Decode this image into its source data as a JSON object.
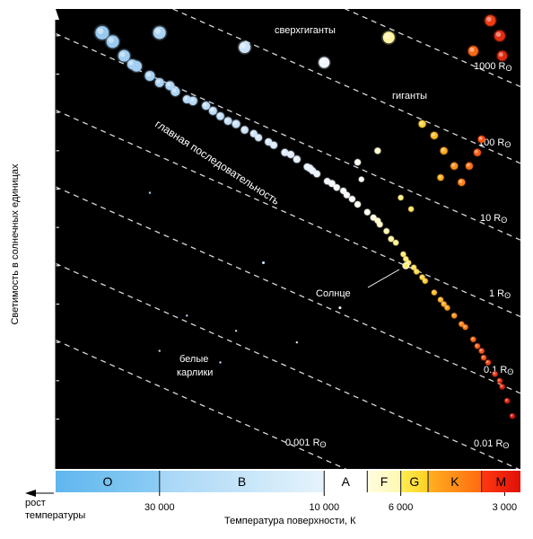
{
  "chart_data": {
    "type": "scatter",
    "title": "",
    "ylabel": "Светимость в солнечных единицах",
    "xlabel": "Температура поверхности, К",
    "xlabel_left": "рост температуры",
    "x_scale": "log",
    "x_direction": "decreasing",
    "y_scale": "log",
    "xlim": [
      60000,
      2700
    ],
    "ylim": [
      5e-06,
      5000000
    ],
    "grid": false,
    "background": "#000000",
    "y_ticks": [
      {
        "value": 1000000,
        "base": "10",
        "exp": "6"
      },
      {
        "value": 100000,
        "base": "10",
        "exp": "5"
      },
      {
        "value": 10000,
        "base": "10",
        "exp": "4"
      },
      {
        "value": 1000,
        "base": "10",
        "exp": "3"
      },
      {
        "value": 100,
        "base": "10",
        "exp": "2"
      },
      {
        "value": 10,
        "base": "10",
        "exp": ""
      },
      {
        "value": 1,
        "base": "1",
        "exp": ""
      },
      {
        "value": 0.1,
        "base": "0.1",
        "exp": ""
      },
      {
        "value": 0.01,
        "base": "10",
        "exp": "-2"
      },
      {
        "value": 0.001,
        "base": "10",
        "exp": "-3"
      },
      {
        "value": 0.0001,
        "base": "10",
        "exp": "-4"
      }
    ],
    "x_ticks": [
      {
        "value": 30000,
        "label": "30 000"
      },
      {
        "value": 10000,
        "label": "10 000"
      },
      {
        "value": 6000,
        "label": "6 000"
      },
      {
        "value": 3000,
        "label": "3 000"
      }
    ],
    "spectral_classes": [
      {
        "label": "O",
        "from": 60000,
        "to": 30000,
        "color_from": "#5fb6ee",
        "color_to": "#8cccf4",
        "text": "#000000"
      },
      {
        "label": "B",
        "from": 30000,
        "to": 10000,
        "color_from": "#a5d6f6",
        "color_to": "#e6f3fc",
        "text": "#000000"
      },
      {
        "label": "A",
        "from": 10000,
        "to": 7500,
        "color_from": "#ffffff",
        "color_to": "#ffffff",
        "text": "#000000"
      },
      {
        "label": "F",
        "from": 7500,
        "to": 6000,
        "color_from": "#fffce0",
        "color_to": "#fff8b0",
        "text": "#000000"
      },
      {
        "label": "G",
        "from": 6000,
        "to": 5000,
        "color_from": "#ffee55",
        "color_to": "#ffd020",
        "text": "#000000"
      },
      {
        "label": "K",
        "from": 5000,
        "to": 3500,
        "color_from": "#ffb020",
        "color_to": "#ff6a10",
        "text": "#000000"
      },
      {
        "label": "M",
        "from": 3500,
        "to": 2700,
        "color_from": "#ff3a10",
        "color_to": "#e01008",
        "text": "#000000"
      }
    ],
    "radius_lines": [
      {
        "label": "1000 R",
        "value": 1000
      },
      {
        "label": "100 R",
        "value": 100
      },
      {
        "label": "10 R",
        "value": 10
      },
      {
        "label": "1 R",
        "value": 1
      },
      {
        "label": "0.1 R",
        "value": 0.1
      },
      {
        "label": "0.01 R",
        "value": 0.01
      },
      {
        "label": "0.001 R",
        "value": 0.001
      }
    ],
    "radius_symbol": "ʘ",
    "annotations": {
      "supergiants": "сверхгиганты",
      "giants": "гиганты",
      "main_sequence": "главная последовательность",
      "sun": "Солнце",
      "white_dwarfs_1": "белые",
      "white_dwarfs_2": "карлики"
    },
    "series": [
      {
        "kind": "main_sequence",
        "points": [
          [
            44000,
            1200000,
            7.5
          ],
          [
            41000,
            700000,
            7
          ],
          [
            38000,
            300000,
            6.5
          ],
          [
            35000,
            160000,
            6
          ],
          [
            32000,
            90000,
            5.5
          ],
          [
            30000,
            60000,
            5
          ],
          [
            27000,
            35000,
            5
          ],
          [
            24000,
            20000,
            4.8
          ],
          [
            21000,
            11000,
            4.5
          ],
          [
            19000,
            6000,
            4.3
          ],
          [
            17000,
            3500,
            4.2
          ],
          [
            15500,
            2200,
            4
          ],
          [
            14000,
            1400,
            4
          ],
          [
            13000,
            900,
            4
          ],
          [
            12000,
            600,
            4
          ],
          [
            11200,
            380,
            3.8
          ],
          [
            10500,
            250,
            3.8
          ],
          [
            9800,
            160,
            3.6
          ],
          [
            9200,
            110,
            3.6
          ],
          [
            8600,
            70,
            3.5
          ],
          [
            8000,
            40,
            3.5
          ],
          [
            7500,
            25,
            3.4
          ],
          [
            7000,
            15,
            3.3
          ],
          [
            6600,
            8,
            3.2
          ],
          [
            6200,
            4,
            3.1
          ],
          [
            5900,
            2,
            3
          ],
          [
            5700,
            1.2,
            3
          ],
          [
            5400,
            0.7,
            3
          ],
          [
            5100,
            0.4,
            3
          ],
          [
            4800,
            0.2,
            3
          ],
          [
            4500,
            0.1,
            3
          ],
          [
            4200,
            0.05,
            3
          ],
          [
            3900,
            0.025,
            3
          ],
          [
            3700,
            0.012,
            3
          ],
          [
            3500,
            0.006,
            3
          ],
          [
            3350,
            0.003,
            3
          ],
          [
            3200,
            0.0015,
            3
          ],
          [
            3050,
            0.0007,
            3
          ],
          [
            2950,
            0.0003,
            3
          ],
          [
            2850,
            0.00012,
            3
          ],
          [
            36000,
            180000,
            5.5
          ],
          [
            28000,
            50000,
            5
          ],
          [
            22000,
            15000,
            4.5
          ],
          [
            18000,
            5000,
            4.5
          ],
          [
            16000,
            2800,
            4
          ],
          [
            12500,
            800,
            4
          ],
          [
            11000,
            350,
            4
          ],
          [
            9500,
            140,
            3.8
          ],
          [
            8300,
            55,
            3.5
          ],
          [
            7200,
            18,
            3.4
          ],
          [
            6400,
            5,
            3.2
          ],
          [
            5800,
            1.5,
            3
          ],
          [
            5200,
            0.5,
            3
          ],
          [
            4600,
            0.13,
            3
          ],
          [
            4000,
            0.03,
            3
          ],
          [
            3600,
            0.008,
            3
          ],
          [
            3100,
            0.001,
            3
          ],
          [
            25000,
            22000,
            4.5
          ],
          [
            20000,
            8000,
            4.3
          ],
          [
            14500,
            1700,
            4
          ],
          [
            10800,
            300,
            3.8
          ],
          [
            8800,
            90,
            3.5
          ],
          [
            6900,
            12,
            3.3
          ],
          [
            5500,
            0.9,
            3
          ],
          [
            4400,
            0.08,
            3
          ],
          [
            3450,
            0.004,
            3
          ]
        ]
      },
      {
        "kind": "supergiants",
        "points": [
          [
            30000,
            1200000,
            7
          ],
          [
            17000,
            500000,
            6.5
          ],
          [
            10000,
            200000,
            6
          ],
          [
            6500,
            900000,
            6.5
          ],
          [
            3300,
            2500000,
            6
          ],
          [
            3100,
            1000000,
            6
          ],
          [
            3050,
            300000,
            5.5
          ],
          [
            3700,
            400000,
            5.5
          ]
        ]
      },
      {
        "kind": "giants",
        "points": [
          [
            5200,
            5000,
            4
          ],
          [
            4800,
            2500,
            4
          ],
          [
            4500,
            1000,
            4
          ],
          [
            4200,
            400,
            4
          ],
          [
            4600,
            200,
            3.5
          ],
          [
            4000,
            150,
            4
          ],
          [
            3800,
            400,
            4
          ],
          [
            3600,
            900,
            4
          ],
          [
            3500,
            2000,
            4
          ],
          [
            5600,
            30,
            3
          ],
          [
            6000,
            60,
            3
          ],
          [
            7000,
            1000,
            3.5
          ],
          [
            8000,
            500,
            3.5
          ],
          [
            7800,
            180,
            3
          ]
        ]
      },
      {
        "kind": "white_dwarfs",
        "points": [
          [
            32000,
            80,
            1.2
          ],
          [
            15000,
            1.2,
            1.5
          ],
          [
            9000,
            0.08,
            1.5
          ],
          [
            25000,
            0.05,
            1.2
          ],
          [
            18000,
            0.02,
            1.2
          ],
          [
            12000,
            0.01,
            1.2
          ],
          [
            20000,
            0.003,
            1.2
          ],
          [
            30000,
            0.006,
            1.2
          ]
        ]
      }
    ],
    "sun": {
      "temperature": 5800,
      "luminosity": 1
    }
  }
}
